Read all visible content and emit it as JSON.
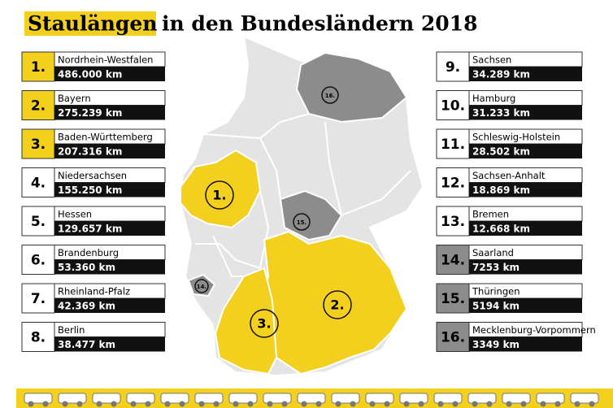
{
  "title_highlight": "Staulängen",
  "title_rest": "in den Bundesländern 2018",
  "entries": [
    {
      "rank": "1.",
      "state": "Nordrhein-Westfalen",
      "length": "486.000 km",
      "color": "#f3cf1e"
    },
    {
      "rank": "2.",
      "state": "Bayern",
      "length": "275.239 km",
      "color": "#f3cf1e"
    },
    {
      "rank": "3.",
      "state": "Baden-Württemberg",
      "length": "207.316 km",
      "color": "#f3cf1e"
    },
    {
      "rank": "4.",
      "state": "Niedersachsen",
      "length": "155.250 km",
      "color": "#ffffff"
    },
    {
      "rank": "5.",
      "state": "Hessen",
      "length": "129.657 km",
      "color": "#ffffff"
    },
    {
      "rank": "6.",
      "state": "Brandenburg",
      "length": "53.360 km",
      "color": "#ffffff"
    },
    {
      "rank": "7.",
      "state": "Rheinland-Pfalz",
      "length": "42.369 km",
      "color": "#ffffff"
    },
    {
      "rank": "8.",
      "state": "Berlin",
      "length": "38.477 km",
      "color": "#ffffff"
    },
    {
      "rank": "9.",
      "state": "Sachsen",
      "length": "34.289 km",
      "color": "#ffffff"
    },
    {
      "rank": "10.",
      "state": "Hamburg",
      "length": "31.233 km",
      "color": "#ffffff"
    },
    {
      "rank": "11.",
      "state": "Schleswig-Holstein",
      "length": "28.502 km",
      "color": "#ffffff"
    },
    {
      "rank": "12.",
      "state": "Sachsen-Anhalt",
      "length": "18.869 km",
      "color": "#ffffff"
    },
    {
      "rank": "13.",
      "state": "Bremen",
      "length": "12.668 km",
      "color": "#ffffff"
    },
    {
      "rank": "14.",
      "state": "Saarland",
      "length": "7253 km",
      "color": "#8c8c8c"
    },
    {
      "rank": "15.",
      "state": "Thüringen",
      "length": "5194 km",
      "color": "#8c8c8c"
    },
    {
      "rank": "16.",
      "state": "Mecklenburg-Vorpommern",
      "length": "3349 km",
      "color": "#8c8c8c"
    }
  ]
}
